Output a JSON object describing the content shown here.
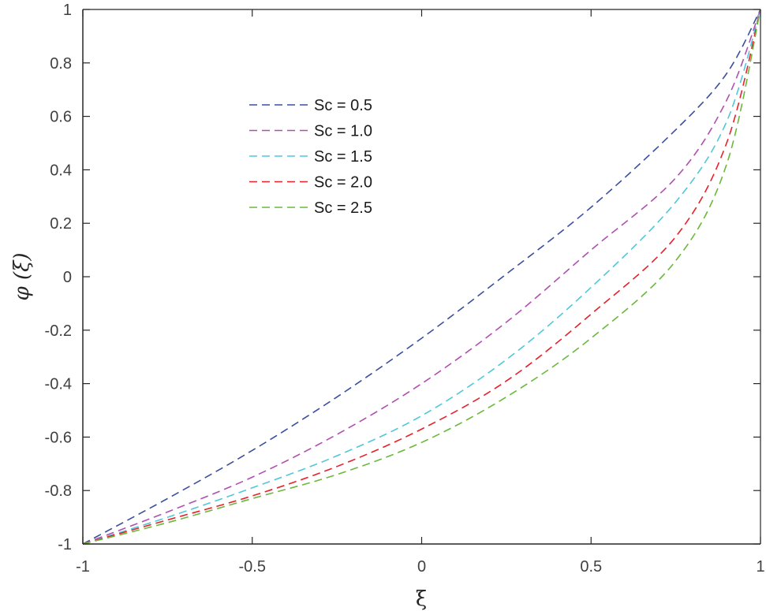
{
  "chart_data": {
    "type": "line",
    "title": "",
    "xlabel": "ξ",
    "ylabel": "φ (ξ)",
    "xlim": [
      -1,
      1
    ],
    "ylim": [
      -1,
      1
    ],
    "grid": false,
    "legend_position": "upper-left-inside",
    "x_ticks": [
      -1,
      -0.5,
      0,
      0.5,
      1
    ],
    "x_tick_labels": [
      "-1",
      "-0.5",
      "0",
      "0.5",
      "1"
    ],
    "y_ticks": [
      -1,
      -0.8,
      -0.6,
      -0.4,
      -0.2,
      0,
      0.2,
      0.4,
      0.6,
      0.8,
      1
    ],
    "y_tick_labels": [
      "-1",
      "-0.8",
      "-0.6",
      "-0.4",
      "-0.2",
      "0",
      "0.2",
      "0.4",
      "0.6",
      "0.8",
      "1"
    ],
    "x": [
      -1,
      -0.75,
      -0.5,
      -0.25,
      0,
      0.25,
      0.5,
      0.75,
      0.9,
      1
    ],
    "series": [
      {
        "name": "Sc = 0.5",
        "color": "#3b4fa0",
        "dash": "dashed",
        "values": [
          -1,
          -0.83,
          -0.65,
          -0.45,
          -0.23,
          0.01,
          0.26,
          0.55,
          0.76,
          1
        ]
      },
      {
        "name": "Sc = 1.0",
        "color": "#b04fb0",
        "dash": "dashed",
        "values": [
          -1,
          -0.88,
          -0.75,
          -0.59,
          -0.4,
          -0.17,
          0.1,
          0.37,
          0.66,
          1
        ]
      },
      {
        "name": "Sc = 1.5",
        "color": "#4fc8d8",
        "dash": "dashed",
        "values": [
          -1,
          -0.9,
          -0.79,
          -0.67,
          -0.52,
          -0.31,
          -0.04,
          0.28,
          0.58,
          1
        ]
      },
      {
        "name": "Sc = 2.0",
        "color": "#e8202a",
        "dash": "dashed",
        "values": [
          -1,
          -0.91,
          -0.82,
          -0.71,
          -0.57,
          -0.39,
          -0.14,
          0.15,
          0.5,
          1
        ]
      },
      {
        "name": "Sc = 2.5",
        "color": "#6ab83c",
        "dash": "dashed",
        "values": [
          -1,
          -0.92,
          -0.83,
          -0.74,
          -0.62,
          -0.45,
          -0.23,
          0.06,
          0.42,
          1
        ]
      }
    ]
  },
  "legend": {
    "items": [
      {
        "label": "Sc = 0.5",
        "color": "#3b4fa0"
      },
      {
        "label": "Sc = 1.0",
        "color": "#b04fb0"
      },
      {
        "label": "Sc = 1.5",
        "color": "#4fc8d8"
      },
      {
        "label": "Sc = 2.0",
        "color": "#e8202a"
      },
      {
        "label": "Sc = 2.5",
        "color": "#6ab83c"
      }
    ]
  },
  "axes": {
    "xlabel": "ξ",
    "ylabel": "φ (ξ)"
  }
}
